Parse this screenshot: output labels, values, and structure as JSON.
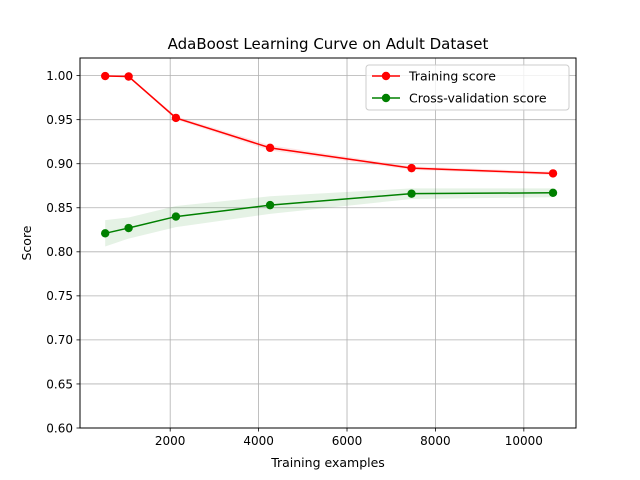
{
  "chart_data": {
    "type": "line",
    "title": "AdaBoost Learning Curve on Adult Dataset",
    "xlabel": "Training examples",
    "ylabel": "Score",
    "xlim": [
      -40,
      11180
    ],
    "ylim": [
      0.6,
      1.02
    ],
    "xticks": [
      2000,
      4000,
      6000,
      8000,
      10000
    ],
    "yticks": [
      0.6,
      0.65,
      0.7,
      0.75,
      0.8,
      0.85,
      0.9,
      0.95,
      1.0
    ],
    "xtick_labels": [
      "2000",
      "4000",
      "6000",
      "8000",
      "10000"
    ],
    "ytick_labels": [
      "0.60",
      "0.65",
      "0.70",
      "0.75",
      "0.80",
      "0.85",
      "0.90",
      "0.95",
      "1.00"
    ],
    "grid": true,
    "legend_position": "top-right",
    "x": [
      530,
      1060,
      2130,
      4260,
      7460,
      10660
    ],
    "series": [
      {
        "name": "Training score",
        "color": "#ff0000",
        "marker": "circle",
        "values": [
          0.9995,
          0.999,
          0.952,
          0.918,
          0.895,
          0.889
        ],
        "band_low": [
          0.999,
          0.998,
          0.95,
          0.915,
          0.893,
          0.887
        ],
        "band_high": [
          1.0,
          1.0,
          0.954,
          0.921,
          0.897,
          0.891
        ]
      },
      {
        "name": "Cross-validation score",
        "color": "#008000",
        "marker": "circle",
        "values": [
          0.821,
          0.827,
          0.84,
          0.853,
          0.866,
          0.867
        ],
        "band_low": [
          0.806,
          0.815,
          0.828,
          0.843,
          0.86,
          0.862
        ],
        "band_high": [
          0.836,
          0.839,
          0.852,
          0.863,
          0.872,
          0.872
        ]
      }
    ]
  }
}
